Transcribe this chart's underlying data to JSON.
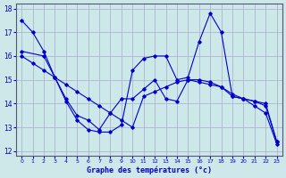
{
  "title": "Graphe des températures (°c)",
  "bg_color": "#cce8e8",
  "grid_color": "#aaaacc",
  "line_color": "#0000cc",
  "xlim": [
    -0.5,
    23.5
  ],
  "ylim": [
    11.8,
    18.2
  ],
  "yticks": [
    12,
    13,
    14,
    15,
    16,
    17,
    18
  ],
  "xticks": [
    0,
    1,
    2,
    3,
    4,
    5,
    6,
    7,
    8,
    9,
    10,
    11,
    12,
    13,
    14,
    15,
    16,
    17,
    18,
    19,
    20,
    21,
    22,
    23
  ],
  "line1_x": [
    0,
    1,
    2,
    3,
    4,
    5,
    6,
    7,
    8,
    9,
    10,
    11,
    12,
    13,
    14,
    15,
    16,
    17,
    18,
    19,
    20,
    21,
    22,
    23
  ],
  "line1_y": [
    17.5,
    17.0,
    16.2,
    15.1,
    14.1,
    13.3,
    12.9,
    12.8,
    12.8,
    13.1,
    15.4,
    15.9,
    16.0,
    16.0,
    15.0,
    15.1,
    16.6,
    17.8,
    17.0,
    14.3,
    14.2,
    14.1,
    13.9,
    12.4
  ],
  "line2_x": [
    0,
    2,
    3,
    4,
    5,
    6,
    7,
    8,
    9,
    10,
    11,
    12,
    13,
    14,
    15,
    16,
    17,
    18,
    19,
    20,
    21,
    22,
    23
  ],
  "line2_y": [
    16.2,
    16.0,
    15.1,
    14.2,
    13.5,
    13.3,
    12.9,
    13.6,
    14.2,
    14.2,
    14.6,
    15.0,
    14.2,
    14.1,
    15.0,
    14.9,
    14.8,
    14.7,
    14.3,
    14.2,
    14.1,
    14.0,
    12.4
  ],
  "line3_x": [
    0,
    1,
    2,
    3,
    4,
    5,
    6,
    7,
    8,
    9,
    10,
    11,
    12,
    13,
    14,
    15,
    16,
    17,
    18,
    19,
    20,
    21,
    22,
    23
  ],
  "line3_y": [
    16.0,
    15.7,
    15.4,
    15.1,
    14.8,
    14.5,
    14.2,
    13.9,
    13.6,
    13.3,
    13.0,
    14.3,
    14.5,
    14.7,
    14.9,
    15.0,
    15.0,
    14.9,
    14.7,
    14.4,
    14.2,
    13.9,
    13.6,
    12.3
  ]
}
